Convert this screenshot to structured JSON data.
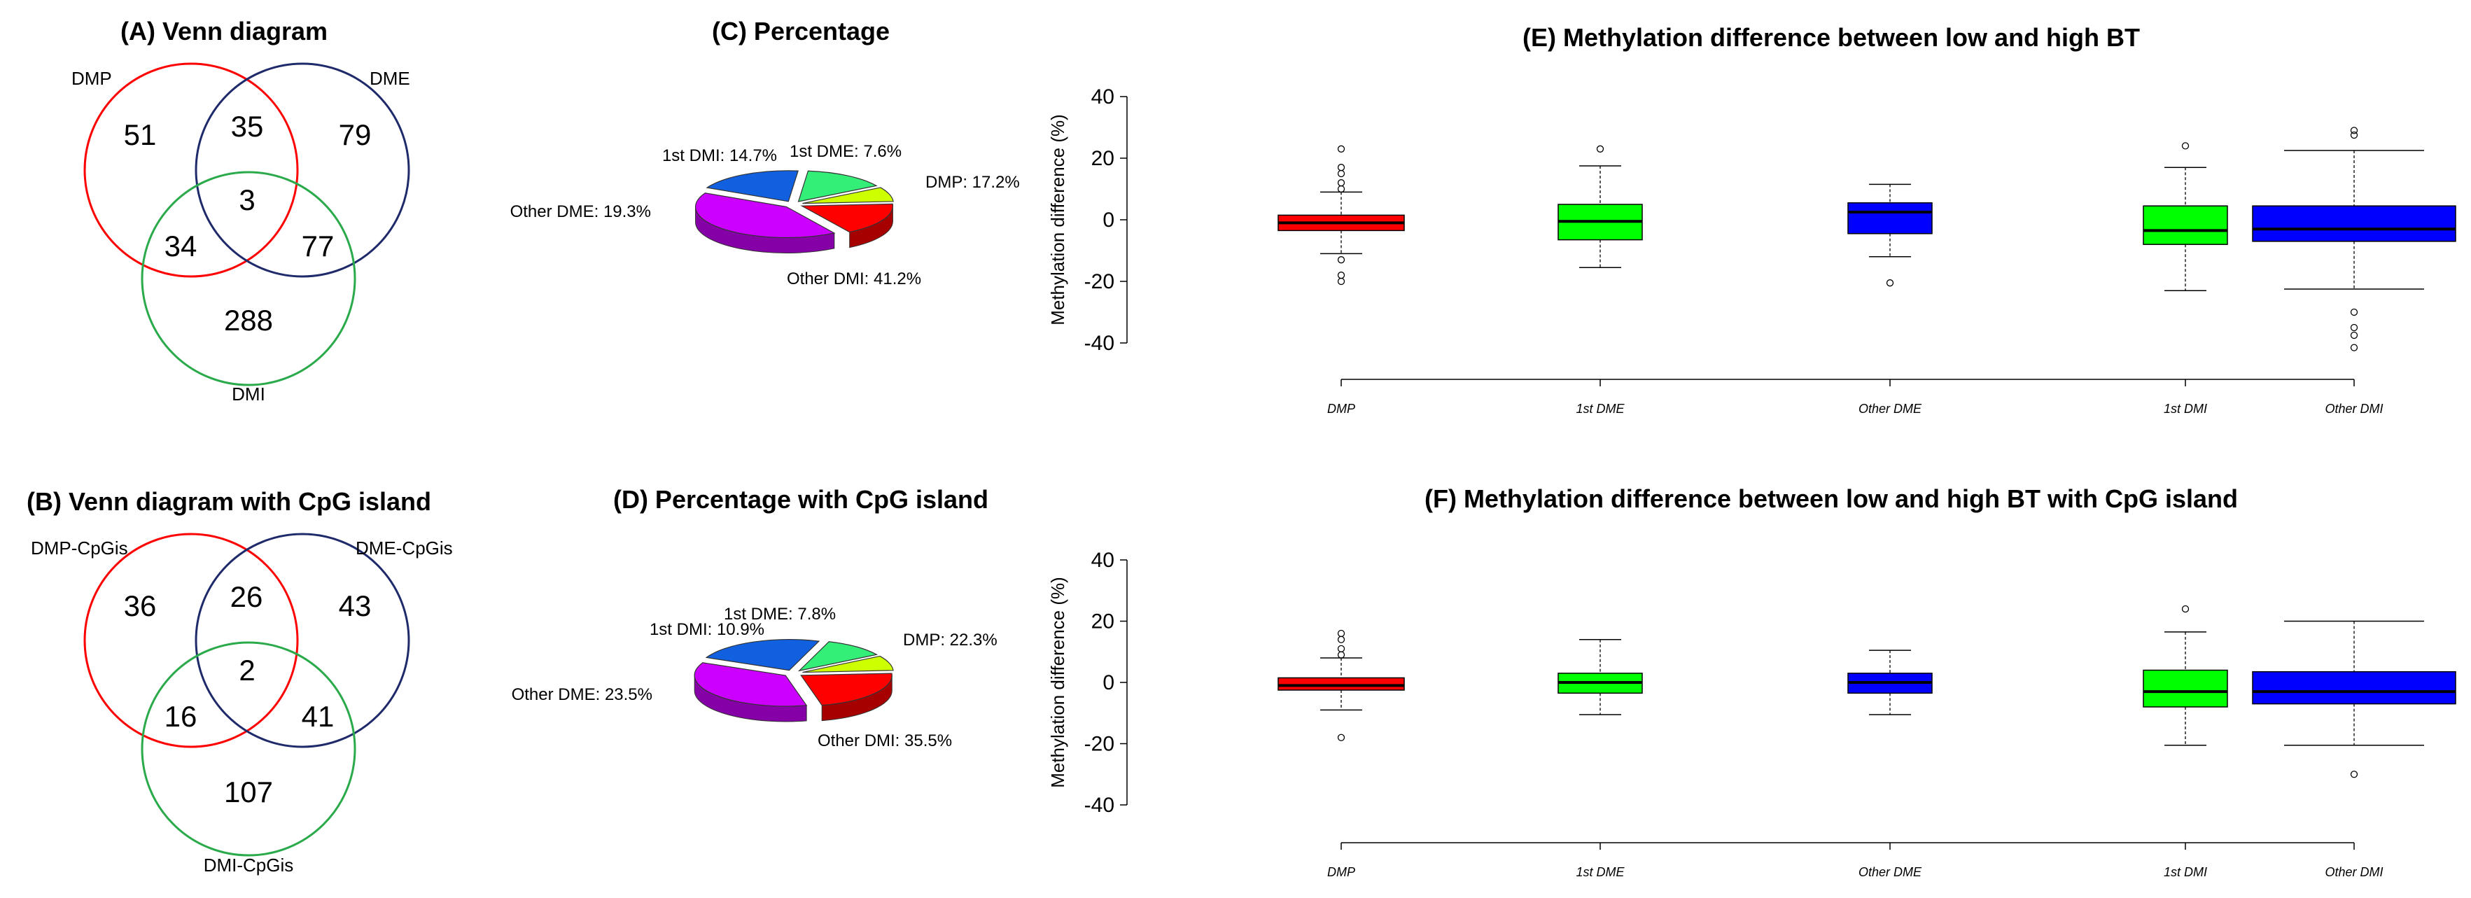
{
  "colors": {
    "red": "#ff0000",
    "green_bright": "#00ff00",
    "blue": "#0000ff",
    "navy": "#1f2a6b",
    "venn_green": "#2aaa4a",
    "yellow_green": "#ccff00",
    "purple": "#cc00ff",
    "dme_blue": "#1060e0",
    "dmi_green": "#33ee77"
  },
  "panels": {
    "A": {
      "title": "(A) Venn diagram",
      "sets": [
        "DMP",
        "DME",
        "DMI"
      ],
      "counts": {
        "only1": "51",
        "one_two": "35",
        "only2": "79",
        "center": "3",
        "one_three": "34",
        "two_three": "77",
        "only3": "288"
      }
    },
    "B": {
      "title": "(B) Venn diagram with CpG island",
      "sets": [
        "DMP-CpGis",
        "DME-CpGis",
        "DMI-CpGis"
      ],
      "counts": {
        "only1": "36",
        "one_two": "26",
        "only2": "43",
        "center": "2",
        "one_three": "16",
        "two_three": "41",
        "only3": "107"
      }
    },
    "C": {
      "title": "(C) Percentage"
    },
    "D": {
      "title": "(D) Percentage with CpG island"
    },
    "E": {
      "title": "(E)  Methylation difference between low and high BT"
    },
    "F": {
      "title": "(F)  Methylation difference between low and high BT with CpG island"
    }
  },
  "chart_data": [
    {
      "id": "C",
      "type": "pie",
      "title": "(C) Percentage",
      "slices": [
        {
          "label": "DMP: 17.2%",
          "value": 17.2,
          "color": "#ff0000"
        },
        {
          "label": "Other DMI: 41.2%",
          "value": 41.2,
          "color": "#cc00ff"
        },
        {
          "label": "Other DME: 19.3%",
          "value": 19.3,
          "color": "#1060e0"
        },
        {
          "label": "1st DMI: 14.7%",
          "value": 14.7,
          "color": "#33ee77"
        },
        {
          "label": "1st DME: 7.6%",
          "value": 7.6,
          "color": "#ccff00"
        }
      ]
    },
    {
      "id": "D",
      "type": "pie",
      "title": "(D) Percentage with CpG island",
      "slices": [
        {
          "label": "DMP: 22.3%",
          "value": 22.3,
          "color": "#ff0000"
        },
        {
          "label": "Other DMI: 35.5%",
          "value": 35.5,
          "color": "#cc00ff"
        },
        {
          "label": "Other DME: 23.5%",
          "value": 23.5,
          "color": "#1060e0"
        },
        {
          "label": "1st DMI: 10.9%",
          "value": 10.9,
          "color": "#33ee77"
        },
        {
          "label": "1st DME: 7.8%",
          "value": 7.8,
          "color": "#ccff00"
        }
      ]
    },
    {
      "id": "E",
      "type": "box",
      "title": "(E)  Methylation difference between low and high BT",
      "ylabel": "Methylation difference (%)",
      "ylim": [
        -40,
        40
      ],
      "yticks": [
        "-40",
        "-20",
        "0",
        "20",
        "40"
      ],
      "categories": [
        "DMP",
        "1st DME",
        "Other DME",
        "1st DMI",
        "Other DMI"
      ],
      "boxes": [
        {
          "q1": -3.5,
          "median": -1,
          "q3": 1.5,
          "lo": -11,
          "hi": 9,
          "color": "#ff0000",
          "outliers": [
            23,
            17,
            15,
            12,
            10,
            -13,
            -18,
            -20
          ]
        },
        {
          "q1": -6.5,
          "median": -0.5,
          "q3": 5,
          "lo": -15.5,
          "hi": 17.5,
          "color": "#00ff00",
          "outliers": [
            23
          ]
        },
        {
          "q1": -4.5,
          "median": 2.5,
          "q3": 5.5,
          "lo": -12,
          "hi": 11.5,
          "color": "#0000ff",
          "outliers": [
            -20.5
          ]
        },
        {
          "q1": -8,
          "median": -3.5,
          "q3": 4.5,
          "lo": -23,
          "hi": 17,
          "color": "#00ff00",
          "outliers": [
            24
          ]
        },
        {
          "q1": -7,
          "median": -3,
          "q3": 4.5,
          "lo": -22.5,
          "hi": 22.5,
          "color": "#0000ff",
          "outliers": [
            29,
            27.5,
            -30,
            -35,
            -37.5,
            -41.5
          ]
        }
      ]
    },
    {
      "id": "F",
      "type": "box",
      "title": "(F)  Methylation difference between low and high BT with CpG island",
      "ylabel": "Methylation difference (%)",
      "ylim": [
        -40,
        40
      ],
      "yticks": [
        "-40",
        "-20",
        "0",
        "20",
        "40"
      ],
      "categories": [
        "DMP",
        "1st DME",
        "Other DME",
        "1st DMI",
        "Other DMI"
      ],
      "boxes": [
        {
          "q1": -2.5,
          "median": -1,
          "q3": 1.5,
          "lo": -9,
          "hi": 8,
          "color": "#ff0000",
          "outliers": [
            16,
            14,
            11,
            9,
            -18
          ]
        },
        {
          "q1": -3.5,
          "median": 0,
          "q3": 3,
          "lo": -10.5,
          "hi": 14,
          "color": "#00ff00",
          "outliers": []
        },
        {
          "q1": -3.5,
          "median": 0,
          "q3": 3,
          "lo": -10.5,
          "hi": 10.5,
          "color": "#0000ff",
          "outliers": []
        },
        {
          "q1": -8,
          "median": -3,
          "q3": 4,
          "lo": -20.5,
          "hi": 16.5,
          "color": "#00ff00",
          "outliers": [
            24
          ]
        },
        {
          "q1": -7,
          "median": -3,
          "q3": 3.5,
          "lo": -20.5,
          "hi": 20,
          "color": "#0000ff",
          "outliers": [
            -30
          ]
        }
      ]
    }
  ]
}
